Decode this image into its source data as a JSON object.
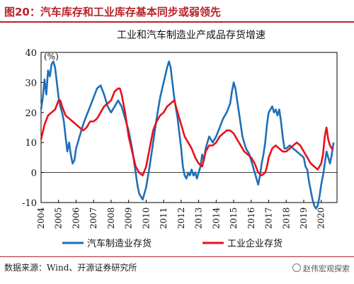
{
  "figure": {
    "title": "图20：汽车库存和工业库存基本同步或弱领先",
    "source": "数据来源：Wind、开源证券研究所",
    "watermark": "赵伟宏观探索"
  },
  "chart_data": {
    "type": "line",
    "title": "工业和汽车制造业产成品存货增速",
    "ylabel": "(%)",
    "xlabel": "",
    "xlim": [
      2004,
      2020.9
    ],
    "ylim": [
      -10,
      40
    ],
    "yticks": [
      -10,
      0,
      10,
      20,
      30,
      40
    ],
    "xticks": [
      "2004",
      "2005",
      "2006",
      "2007",
      "2008",
      "2009",
      "2010",
      "2011",
      "2012",
      "2013",
      "2014",
      "2015",
      "2016",
      "2017",
      "2018",
      "2019",
      "2020"
    ],
    "grid": false,
    "legend_position": "bottom",
    "colors": {
      "auto": "#1f6fb8",
      "industry": "#e8101a"
    },
    "series": [
      {
        "name": "汽车制造业存货",
        "color": "#1f6fb8",
        "points": [
          [
            2004.0,
            21
          ],
          [
            2004.1,
            25
          ],
          [
            2004.2,
            31
          ],
          [
            2004.3,
            26
          ],
          [
            2004.4,
            34
          ],
          [
            2004.5,
            32
          ],
          [
            2004.6,
            36
          ],
          [
            2004.7,
            37
          ],
          [
            2004.8,
            35
          ],
          [
            2004.9,
            30
          ],
          [
            2005.0,
            25
          ],
          [
            2005.1,
            22
          ],
          [
            2005.2,
            20
          ],
          [
            2005.3,
            17
          ],
          [
            2005.4,
            12
          ],
          [
            2005.5,
            7
          ],
          [
            2005.6,
            10
          ],
          [
            2005.7,
            6
          ],
          [
            2005.8,
            3
          ],
          [
            2005.9,
            4
          ],
          [
            2006.0,
            8
          ],
          [
            2006.2,
            12
          ],
          [
            2006.4,
            16
          ],
          [
            2006.6,
            19
          ],
          [
            2006.8,
            22
          ],
          [
            2007.0,
            25
          ],
          [
            2007.2,
            28
          ],
          [
            2007.4,
            29
          ],
          [
            2007.6,
            26
          ],
          [
            2007.8,
            22
          ],
          [
            2008.0,
            20
          ],
          [
            2008.2,
            22
          ],
          [
            2008.4,
            24
          ],
          [
            2008.6,
            22
          ],
          [
            2008.8,
            18
          ],
          [
            2009.0,
            14
          ],
          [
            2009.2,
            8
          ],
          [
            2009.4,
            0
          ],
          [
            2009.5,
            -4
          ],
          [
            2009.6,
            -7
          ],
          [
            2009.7,
            -8
          ],
          [
            2009.8,
            -9
          ],
          [
            2009.9,
            -7
          ],
          [
            2010.0,
            -5
          ],
          [
            2010.2,
            2
          ],
          [
            2010.4,
            10
          ],
          [
            2010.6,
            18
          ],
          [
            2010.8,
            25
          ],
          [
            2011.0,
            30
          ],
          [
            2011.2,
            35
          ],
          [
            2011.3,
            37
          ],
          [
            2011.4,
            35
          ],
          [
            2011.5,
            30
          ],
          [
            2011.6,
            25
          ],
          [
            2011.8,
            18
          ],
          [
            2012.0,
            8
          ],
          [
            2012.1,
            2
          ],
          [
            2012.2,
            -1
          ],
          [
            2012.3,
            -2
          ],
          [
            2012.4,
            0
          ],
          [
            2012.5,
            -1
          ],
          [
            2012.6,
            1
          ],
          [
            2012.7,
            -1
          ],
          [
            2012.8,
            0
          ],
          [
            2012.9,
            -2
          ],
          [
            2013.0,
            0
          ],
          [
            2013.1,
            2
          ],
          [
            2013.2,
            6
          ],
          [
            2013.3,
            4
          ],
          [
            2013.4,
            8
          ],
          [
            2013.6,
            12
          ],
          [
            2013.8,
            10
          ],
          [
            2014.0,
            12
          ],
          [
            2014.2,
            15
          ],
          [
            2014.4,
            18
          ],
          [
            2014.6,
            20
          ],
          [
            2014.8,
            23
          ],
          [
            2014.9,
            27
          ],
          [
            2015.0,
            30
          ],
          [
            2015.1,
            28
          ],
          [
            2015.2,
            24
          ],
          [
            2015.3,
            20
          ],
          [
            2015.4,
            16
          ],
          [
            2015.5,
            12
          ],
          [
            2015.6,
            10
          ],
          [
            2015.7,
            8
          ],
          [
            2015.8,
            7
          ],
          [
            2015.9,
            6
          ],
          [
            2016.0,
            4
          ],
          [
            2016.1,
            2
          ],
          [
            2016.2,
            0
          ],
          [
            2016.3,
            -2
          ],
          [
            2016.4,
            -4
          ],
          [
            2016.5,
            -1
          ],
          [
            2016.6,
            3
          ],
          [
            2016.7,
            6
          ],
          [
            2016.8,
            10
          ],
          [
            2016.9,
            16
          ],
          [
            2017.0,
            20
          ],
          [
            2017.1,
            21
          ],
          [
            2017.2,
            22
          ],
          [
            2017.3,
            20
          ],
          [
            2017.4,
            21
          ],
          [
            2017.5,
            19
          ],
          [
            2017.6,
            21
          ],
          [
            2017.7,
            17
          ],
          [
            2017.8,
            12
          ],
          [
            2017.9,
            8
          ],
          [
            2018.0,
            8
          ],
          [
            2018.2,
            9
          ],
          [
            2018.4,
            8
          ],
          [
            2018.6,
            7
          ],
          [
            2018.8,
            6
          ],
          [
            2019.0,
            5
          ],
          [
            2019.1,
            2
          ],
          [
            2019.2,
            1
          ],
          [
            2019.3,
            -3
          ],
          [
            2019.4,
            -6
          ],
          [
            2019.5,
            -9
          ],
          [
            2019.6,
            -11
          ],
          [
            2019.7,
            -12
          ],
          [
            2019.8,
            -11
          ],
          [
            2019.9,
            -8
          ],
          [
            2020.0,
            -4
          ],
          [
            2020.1,
            -1
          ],
          [
            2020.2,
            3
          ],
          [
            2020.3,
            7
          ],
          [
            2020.4,
            5
          ],
          [
            2020.5,
            3
          ],
          [
            2020.6,
            6
          ],
          [
            2020.7,
            10
          ]
        ]
      },
      {
        "name": "工业企业存货",
        "color": "#e8101a",
        "points": [
          [
            2004.0,
            11
          ],
          [
            2004.2,
            16
          ],
          [
            2004.4,
            19
          ],
          [
            2004.6,
            20
          ],
          [
            2004.8,
            21
          ],
          [
            2005.0,
            24
          ],
          [
            2005.1,
            24
          ],
          [
            2005.2,
            22
          ],
          [
            2005.4,
            19
          ],
          [
            2005.6,
            18
          ],
          [
            2005.8,
            17
          ],
          [
            2006.0,
            16
          ],
          [
            2006.2,
            15
          ],
          [
            2006.4,
            14
          ],
          [
            2006.6,
            15
          ],
          [
            2006.8,
            17
          ],
          [
            2007.0,
            17
          ],
          [
            2007.2,
            18
          ],
          [
            2007.4,
            20
          ],
          [
            2007.6,
            22
          ],
          [
            2007.8,
            23
          ],
          [
            2008.0,
            24
          ],
          [
            2008.2,
            27
          ],
          [
            2008.4,
            28
          ],
          [
            2008.5,
            28
          ],
          [
            2008.6,
            26
          ],
          [
            2008.8,
            20
          ],
          [
            2009.0,
            12
          ],
          [
            2009.2,
            7
          ],
          [
            2009.4,
            2
          ],
          [
            2009.6,
            0
          ],
          [
            2009.8,
            -1
          ],
          [
            2010.0,
            2
          ],
          [
            2010.2,
            8
          ],
          [
            2010.4,
            14
          ],
          [
            2010.6,
            17
          ],
          [
            2010.8,
            19
          ],
          [
            2011.0,
            20
          ],
          [
            2011.2,
            22
          ],
          [
            2011.4,
            23
          ],
          [
            2011.6,
            24
          ],
          [
            2011.8,
            20
          ],
          [
            2012.0,
            16
          ],
          [
            2012.2,
            12
          ],
          [
            2012.4,
            10
          ],
          [
            2012.6,
            8
          ],
          [
            2012.8,
            5
          ],
          [
            2013.0,
            3
          ],
          [
            2013.2,
            2
          ],
          [
            2013.4,
            7
          ],
          [
            2013.6,
            9
          ],
          [
            2013.8,
            9
          ],
          [
            2014.0,
            10
          ],
          [
            2014.2,
            12
          ],
          [
            2014.4,
            13
          ],
          [
            2014.6,
            14
          ],
          [
            2014.8,
            14
          ],
          [
            2015.0,
            13
          ],
          [
            2015.2,
            11
          ],
          [
            2015.4,
            9
          ],
          [
            2015.6,
            7
          ],
          [
            2015.8,
            6
          ],
          [
            2016.0,
            5
          ],
          [
            2016.2,
            3
          ],
          [
            2016.4,
            0
          ],
          [
            2016.6,
            -1
          ],
          [
            2016.8,
            0
          ],
          [
            2016.9,
            2
          ],
          [
            2017.0,
            5
          ],
          [
            2017.2,
            8
          ],
          [
            2017.4,
            9
          ],
          [
            2017.6,
            8
          ],
          [
            2017.8,
            7
          ],
          [
            2018.0,
            7
          ],
          [
            2018.2,
            8
          ],
          [
            2018.4,
            9
          ],
          [
            2018.6,
            10
          ],
          [
            2018.8,
            9
          ],
          [
            2019.0,
            7
          ],
          [
            2019.2,
            5
          ],
          [
            2019.4,
            3
          ],
          [
            2019.6,
            2
          ],
          [
            2019.8,
            1
          ],
          [
            2020.0,
            3
          ],
          [
            2020.1,
            6
          ],
          [
            2020.2,
            12
          ],
          [
            2020.3,
            15
          ],
          [
            2020.4,
            11
          ],
          [
            2020.5,
            9
          ],
          [
            2020.6,
            8
          ],
          [
            2020.7,
            8
          ]
        ]
      }
    ]
  }
}
